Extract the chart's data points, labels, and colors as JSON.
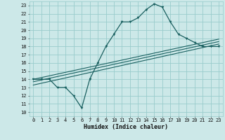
{
  "xlabel": "Humidex (Indice chaleur)",
  "bg_color": "#cce8e8",
  "grid_color": "#99cccc",
  "line_color": "#1a6060",
  "xlim": [
    -0.5,
    23.5
  ],
  "ylim": [
    9.5,
    23.5
  ],
  "xticks": [
    0,
    1,
    2,
    3,
    4,
    5,
    6,
    7,
    8,
    9,
    10,
    11,
    12,
    13,
    14,
    15,
    16,
    17,
    18,
    19,
    20,
    21,
    22,
    23
  ],
  "yticks": [
    10,
    11,
    12,
    13,
    14,
    15,
    16,
    17,
    18,
    19,
    20,
    21,
    22,
    23
  ],
  "main_x": [
    0,
    1,
    2,
    3,
    4,
    5,
    6,
    7,
    8,
    9,
    10,
    11,
    12,
    13,
    14,
    15,
    16,
    17,
    18,
    19,
    20,
    21,
    22,
    23
  ],
  "main_y": [
    14,
    14,
    14,
    13,
    13,
    12,
    10.5,
    14,
    16,
    18,
    19.5,
    21,
    21,
    21.5,
    22.5,
    23.2,
    22.8,
    21,
    19.5,
    19,
    18.5,
    18,
    18,
    18
  ],
  "line1_x": [
    0,
    23
  ],
  "line1_y": [
    13.3,
    18.3
  ],
  "line2_x": [
    0,
    23
  ],
  "line2_y": [
    13.7,
    18.6
  ],
  "line3_x": [
    0,
    23
  ],
  "line3_y": [
    14.0,
    18.9
  ],
  "tick_fontsize": 5.0,
  "xlabel_fontsize": 6.0
}
